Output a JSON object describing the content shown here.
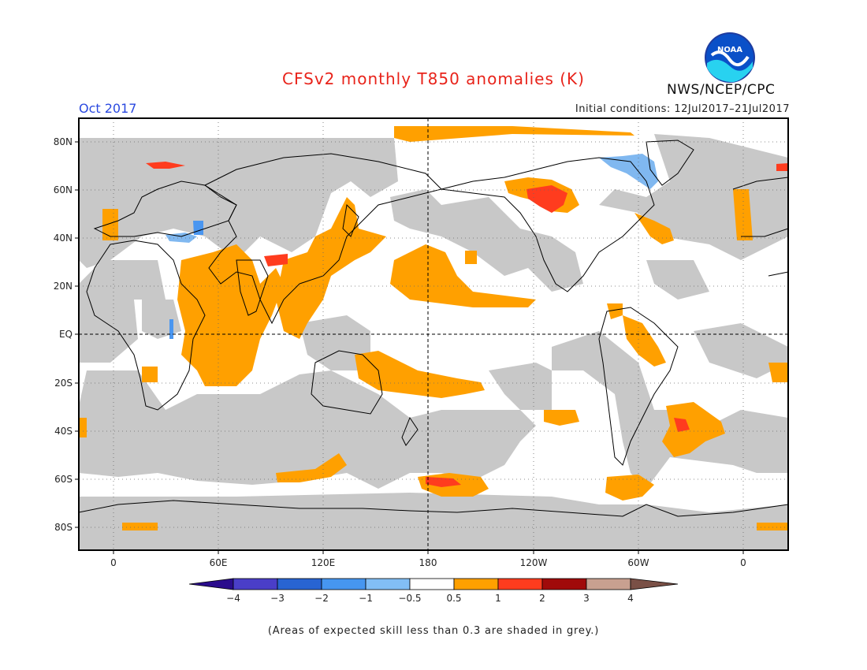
{
  "title": "CFSv2 monthly T850 anomalies (K)",
  "valid_month": "Oct 2017",
  "agency": "NWS/NCEP/CPC",
  "logo_text": "NOAA",
  "initial_conditions": "Initial conditions: 12Jul2017–21Jul2017",
  "footnote": "(Areas of expected skill less than 0.3 are shaded in grey.)",
  "map": {
    "projection": "cylindrical equidistant, 0–360°E, centered on 180",
    "lat_labels": [
      "80N",
      "60N",
      "40N",
      "20N",
      "EQ",
      "20S",
      "40S",
      "60S",
      "80S"
    ],
    "lon_labels": [
      "0",
      "60E",
      "120E",
      "180",
      "120W",
      "60W",
      "0"
    ],
    "colors": {
      "low_skill_grey": "#c8c8c8",
      "warm_05_1": "#ffa000",
      "warm_1_2": "#ff3c1e",
      "cool_-1_-05": "#80b8f0",
      "cool_-2_-1": "#4a96f0"
    }
  },
  "colorbar": {
    "labels": [
      "−4",
      "−3",
      "−2",
      "−1",
      "−0.5",
      "0.5",
      "1",
      "2",
      "3",
      "4"
    ],
    "colors": [
      "#2a0c8c",
      "#4a3ec8",
      "#2864d2",
      "#4696f0",
      "#82bef5",
      "#ffffff",
      "#ffa000",
      "#ff3c1e",
      "#a00a0a",
      "#c8a090",
      "#7a5046"
    ]
  }
}
